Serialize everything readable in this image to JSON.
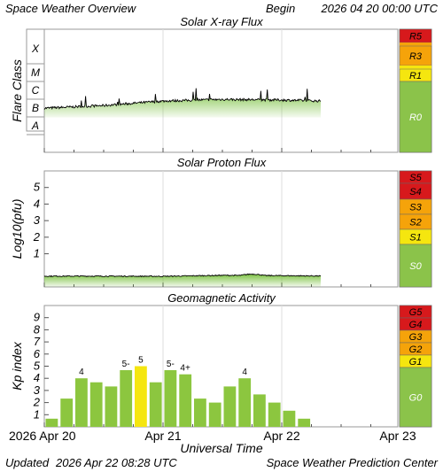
{
  "header": {
    "title": "Space Weather Overview",
    "begin_label": "Begin",
    "begin_value": "2026 04 20 00:00 UTC"
  },
  "footer": {
    "updated_label": "Updated",
    "updated_value": "2026 Apr 22 08:28 UTC",
    "credit": "Space Weather Prediction Center",
    "xlabel": "Universal Time"
  },
  "x_ticks": [
    "2026 Apr 20",
    "Apr 21",
    "Apr 22",
    "Apr 23"
  ],
  "colors": {
    "red": "#d7191c",
    "orange": "#f5a30a",
    "yellow": "#f5e60f",
    "green": "#8bc34a",
    "kp_green": "#8cc63f",
    "kp_yellow": "#f5e60f",
    "trace_green": "#7cc242"
  },
  "chart_data": [
    {
      "type": "area",
      "title": "Solar X-ray Flux",
      "ylabel": "Flare Class",
      "ylim": [
        0,
        6
      ],
      "y_ticks": [
        "A",
        "B",
        "C",
        "M",
        "X"
      ],
      "scale_levels": [
        {
          "label": "R5",
          "color": "red"
        },
        {
          "label": "R3",
          "color": "orange"
        },
        {
          "label": "R1",
          "color": "yellow"
        },
        {
          "label": "R0",
          "color": "green"
        }
      ],
      "x": [
        "2026-04-20",
        "2026-04-20T12",
        "2026-04-21",
        "2026-04-21T12",
        "2026-04-22",
        "2026-04-22T08"
      ],
      "values": [
        2.15,
        2.28,
        2.5,
        2.58,
        2.55,
        2.5
      ]
    },
    {
      "type": "area",
      "title": "Solar Proton Flux",
      "ylabel": "Log10(pfu)",
      "ylim": [
        -1,
        6
      ],
      "y_ticks": [
        "1",
        "2",
        "3",
        "4",
        "5"
      ],
      "scale_levels": [
        {
          "label": "S5",
          "color": "red"
        },
        {
          "label": "S4",
          "color": "red"
        },
        {
          "label": "S3",
          "color": "orange"
        },
        {
          "label": "S2",
          "color": "orange"
        },
        {
          "label": "S1",
          "color": "yellow"
        },
        {
          "label": "S0",
          "color": "green"
        }
      ],
      "x": [
        "2026-04-20",
        "2026-04-20T12",
        "2026-04-21",
        "2026-04-21T12",
        "2026-04-22",
        "2026-04-22T08"
      ],
      "values": [
        -0.35,
        -0.35,
        -0.36,
        -0.3,
        -0.32,
        -0.34
      ]
    },
    {
      "type": "bar",
      "title": "Geomagnetic Activity",
      "ylabel": "Kp index",
      "ylim": [
        0,
        10
      ],
      "y_ticks": [
        "1",
        "2",
        "3",
        "4",
        "5",
        "6",
        "7",
        "8",
        "9"
      ],
      "scale_levels": [
        {
          "label": "G5",
          "color": "red"
        },
        {
          "label": "G4",
          "color": "red"
        },
        {
          "label": "G3",
          "color": "orange"
        },
        {
          "label": "G2",
          "color": "orange"
        },
        {
          "label": "G1",
          "color": "yellow"
        },
        {
          "label": "G0",
          "color": "green"
        }
      ],
      "bars": [
        {
          "start": "2026-04-20 00:00",
          "kp": 0.67,
          "label": ""
        },
        {
          "start": "2026-04-20 03:00",
          "kp": 2.33,
          "label": ""
        },
        {
          "start": "2026-04-20 06:00",
          "kp": 4.0,
          "label": "4"
        },
        {
          "start": "2026-04-20 09:00",
          "kp": 3.67,
          "label": ""
        },
        {
          "start": "2026-04-20 12:00",
          "kp": 3.33,
          "label": ""
        },
        {
          "start": "2026-04-20 15:00",
          "kp": 4.67,
          "label": "5-"
        },
        {
          "start": "2026-04-20 18:00",
          "kp": 5.0,
          "label": "5"
        },
        {
          "start": "2026-04-20 21:00",
          "kp": 3.67,
          "label": ""
        },
        {
          "start": "2026-04-21 00:00",
          "kp": 4.67,
          "label": "5-"
        },
        {
          "start": "2026-04-21 03:00",
          "kp": 4.33,
          "label": "4+"
        },
        {
          "start": "2026-04-21 06:00",
          "kp": 2.33,
          "label": ""
        },
        {
          "start": "2026-04-21 09:00",
          "kp": 2.0,
          "label": ""
        },
        {
          "start": "2026-04-21 12:00",
          "kp": 3.33,
          "label": ""
        },
        {
          "start": "2026-04-21 15:00",
          "kp": 4.0,
          "label": "4"
        },
        {
          "start": "2026-04-21 18:00",
          "kp": 2.67,
          "label": ""
        },
        {
          "start": "2026-04-21 21:00",
          "kp": 2.0,
          "label": ""
        },
        {
          "start": "2026-04-22 00:00",
          "kp": 1.33,
          "label": ""
        },
        {
          "start": "2026-04-22 03:00",
          "kp": 0.67,
          "label": ""
        }
      ]
    }
  ]
}
